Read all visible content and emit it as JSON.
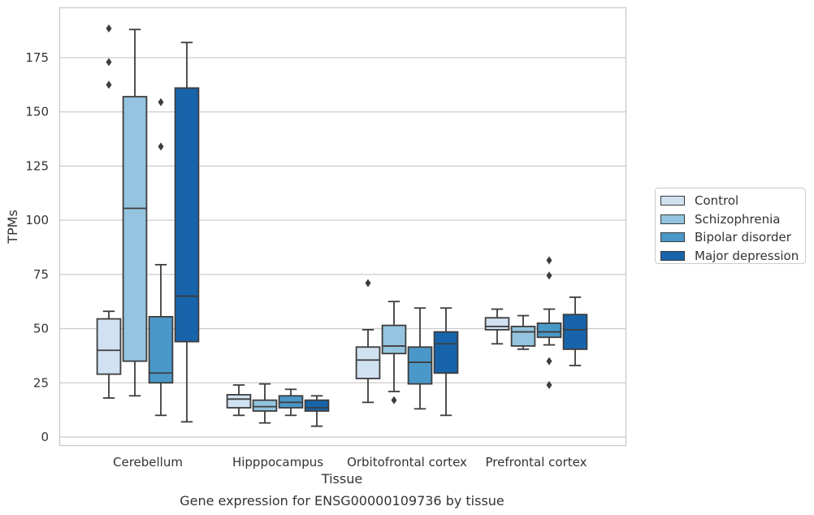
{
  "chart_data": {
    "type": "box",
    "title": "Gene expression for ENSG00000109736 by tissue",
    "xlabel": "Tissue",
    "ylabel": "TPMs",
    "ylim": [
      -3,
      199
    ],
    "yticks": [
      0,
      25,
      50,
      75,
      100,
      125,
      150,
      175
    ],
    "grid": "horizontal",
    "legend_position": "right",
    "categories": [
      "Cerebellum",
      "Hipppocampus",
      "Orbitofrontal cortex",
      "Prefrontal cortex"
    ],
    "series": [
      {
        "name": "Control",
        "color": "#d0e1f2",
        "boxes": [
          {
            "whislo": 18,
            "q1": 29,
            "med": 40,
            "q3": 54.5,
            "whishi": 58,
            "fliers": [
              162.5,
              173,
              188.5
            ]
          },
          {
            "whislo": 10,
            "q1": 13.5,
            "med": 17.5,
            "q3": 19.5,
            "whishi": 24,
            "fliers": []
          },
          {
            "whislo": 16,
            "q1": 27,
            "med": 35.5,
            "q3": 41.5,
            "whishi": 49.5,
            "fliers": [
              71
            ]
          },
          {
            "whislo": 43,
            "q1": 49.5,
            "med": 51,
            "q3": 55,
            "whishi": 59,
            "fliers": []
          }
        ]
      },
      {
        "name": "Schizophrenia",
        "color": "#94c4df",
        "boxes": [
          {
            "whislo": 19,
            "q1": 35,
            "med": 105.5,
            "q3": 157,
            "whishi": 188,
            "fliers": []
          },
          {
            "whislo": 6.5,
            "q1": 12,
            "med": 14,
            "q3": 17,
            "whishi": 24.5,
            "fliers": []
          },
          {
            "whislo": 21,
            "q1": 38.5,
            "med": 42,
            "q3": 51.5,
            "whishi": 62.5,
            "fliers": [
              17
            ]
          },
          {
            "whislo": 40.5,
            "q1": 42,
            "med": 48.5,
            "q3": 51,
            "whishi": 56,
            "fliers": []
          }
        ]
      },
      {
        "name": "Bipolar disorder",
        "color": "#4a98c9",
        "boxes": [
          {
            "whislo": 10,
            "q1": 25,
            "med": 29.5,
            "q3": 55.5,
            "whishi": 79.5,
            "fliers": [
              134,
              154.5
            ]
          },
          {
            "whislo": 10,
            "q1": 13.5,
            "med": 16,
            "q3": 19,
            "whishi": 22,
            "fliers": []
          },
          {
            "whislo": 13,
            "q1": 24.5,
            "med": 34.5,
            "q3": 41.5,
            "whishi": 59.5,
            "fliers": []
          },
          {
            "whislo": 42.5,
            "q1": 46,
            "med": 48.5,
            "q3": 52.5,
            "whishi": 59,
            "fliers": [
              24,
              35,
              74.5,
              81.5
            ]
          }
        ]
      },
      {
        "name": "Major depression",
        "color": "#1764ab",
        "boxes": [
          {
            "whislo": 7,
            "q1": 44,
            "med": 65,
            "q3": 161,
            "whishi": 182,
            "fliers": []
          },
          {
            "whislo": 5,
            "q1": 12,
            "med": 13.5,
            "q3": 17,
            "whishi": 19,
            "fliers": []
          },
          {
            "whislo": 10,
            "q1": 29.5,
            "med": 43,
            "q3": 48.5,
            "whishi": 59.5,
            "fliers": []
          },
          {
            "whislo": 33,
            "q1": 40.5,
            "med": 49.5,
            "q3": 56.5,
            "whishi": 64.5,
            "fliers": []
          }
        ]
      }
    ]
  }
}
